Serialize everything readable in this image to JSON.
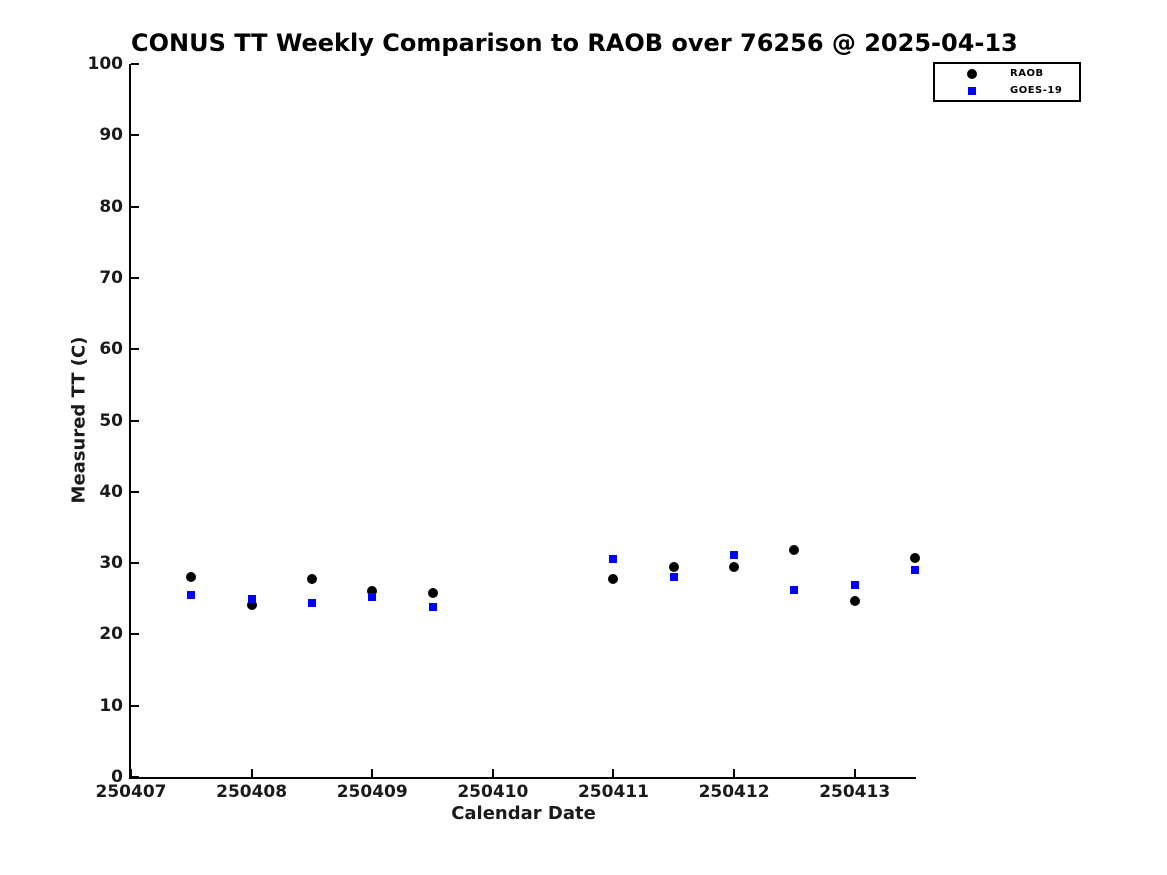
{
  "chart_data": {
    "type": "scatter",
    "title": "CONUS TT Weekly Comparison to RAOB over 76256 @ 2025-04-13",
    "xlabel": "Calendar Date",
    "ylabel": "Measured TT (C)",
    "xlim": [
      250407,
      250413.5
    ],
    "ylim": [
      0,
      100
    ],
    "grid": false,
    "legend_position": "top-right",
    "x_ticks": [
      250407,
      250408,
      250409,
      250410,
      250411,
      250412,
      250413
    ],
    "x_tick_labels": [
      "250407",
      "250408",
      "250409",
      "250410",
      "250411",
      "250412",
      "250413"
    ],
    "y_ticks": [
      0,
      10,
      20,
      30,
      40,
      50,
      60,
      70,
      80,
      90,
      100
    ],
    "y_tick_labels": [
      "0",
      "10",
      "20",
      "30",
      "40",
      "50",
      "60",
      "70",
      "80",
      "90",
      "100"
    ],
    "series": [
      {
        "name": "RAOB",
        "marker": "circle",
        "color": "#000000",
        "points": [
          [
            250407.5,
            28.0
          ],
          [
            250408.0,
            24.1
          ],
          [
            250408.5,
            27.8
          ],
          [
            250409.0,
            26.1
          ],
          [
            250409.5,
            25.8
          ],
          [
            250411.0,
            27.8
          ],
          [
            250411.5,
            29.5
          ],
          [
            250412.0,
            29.4
          ],
          [
            250412.5,
            31.8
          ],
          [
            250413.0,
            24.7
          ],
          [
            250413.5,
            30.7
          ]
        ]
      },
      {
        "name": "GOES-19",
        "marker": "square",
        "color": "#0000ff",
        "points": [
          [
            250407.5,
            25.5
          ],
          [
            250408.0,
            24.9
          ],
          [
            250408.5,
            24.4
          ],
          [
            250409.0,
            25.3
          ],
          [
            250409.5,
            23.9
          ],
          [
            250411.0,
            30.6
          ],
          [
            250411.5,
            28.1
          ],
          [
            250412.0,
            31.1
          ],
          [
            250412.5,
            26.2
          ],
          [
            250413.0,
            26.9
          ],
          [
            250413.5,
            29.1
          ]
        ]
      }
    ]
  }
}
